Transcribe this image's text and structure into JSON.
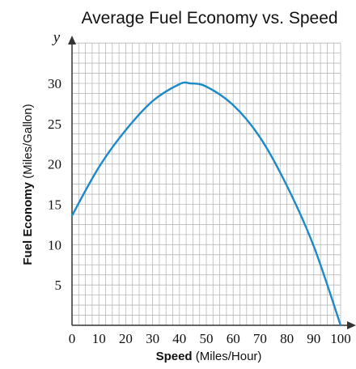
{
  "chart_data": {
    "type": "line",
    "title": "Average Fuel Economy vs. Speed",
    "xlabel": "Speed",
    "xlabel_unit": "(Miles/Hour)",
    "ylabel": "Fuel Economy",
    "ylabel_unit": "(Miles/Gallon)",
    "y_axis_name": "y",
    "xlim": [
      0,
      100
    ],
    "ylim": [
      0,
      35
    ],
    "x_ticks": [
      0,
      10,
      20,
      30,
      40,
      50,
      60,
      70,
      80,
      90,
      100
    ],
    "y_ticks": [
      5,
      10,
      15,
      20,
      25,
      30
    ],
    "x_tick_labels": [
      "0",
      "10",
      "20",
      "30",
      "40",
      "50",
      "60",
      "70",
      "80",
      "90",
      "100"
    ],
    "y_tick_labels": [
      "5",
      "10",
      "15",
      "20",
      "25",
      "30"
    ],
    "grid": true,
    "grid_minor_step_x": 2.5,
    "grid_minor_step_y": 1.25,
    "line_color": "#1c8ac6",
    "series": [
      {
        "x": [
          0,
          10,
          20,
          30,
          40,
          44,
          50,
          60,
          70,
          80,
          90,
          100
        ],
        "values": [
          13.6,
          19.6,
          24.2,
          27.8,
          29.9,
          30.0,
          29.6,
          27.3,
          23.3,
          17.3,
          9.8,
          0
        ]
      }
    ]
  }
}
